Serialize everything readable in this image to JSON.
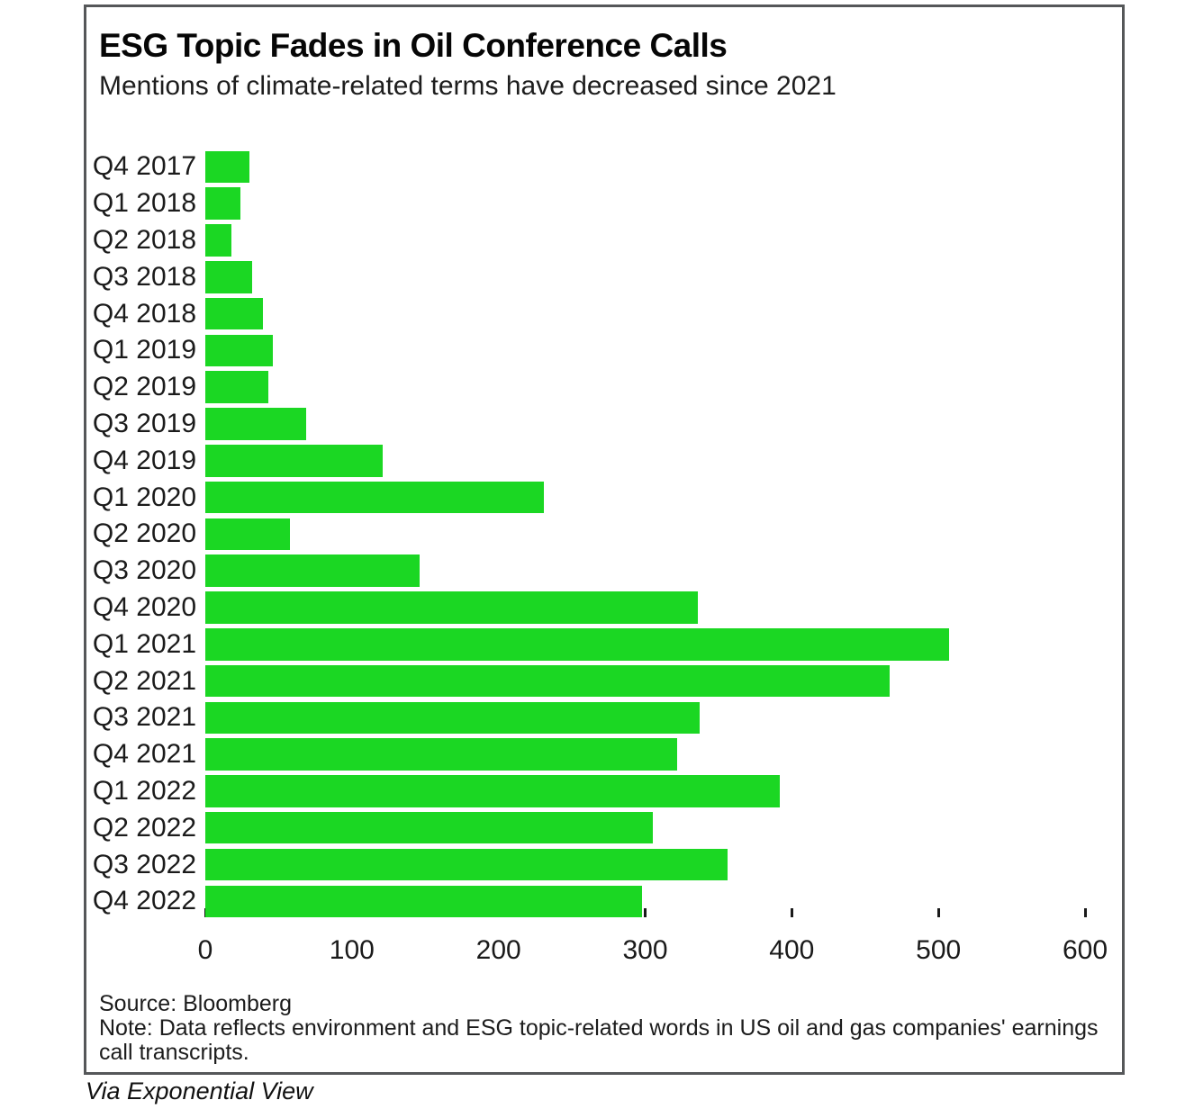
{
  "header": {
    "title": "ESG Topic Fades in Oil Conference Calls",
    "subtitle": "Mentions of climate-related terms have decreased since 2021"
  },
  "chart_data": {
    "type": "bar",
    "orientation": "horizontal",
    "title": "ESG Topic Fades in Oil Conference Calls",
    "subtitle": "Mentions of climate-related terms have decreased since 2021",
    "categories": [
      "Q4 2017",
      "Q1 2018",
      "Q2 2018",
      "Q3 2018",
      "Q4 2018",
      "Q1 2019",
      "Q2 2019",
      "Q3 2019",
      "Q4 2019",
      "Q1 2020",
      "Q2 2020",
      "Q3 2020",
      "Q4 2020",
      "Q1 2021",
      "Q2 2021",
      "Q3 2021",
      "Q4 2021",
      "Q1 2022",
      "Q2 2022",
      "Q3 2022",
      "Q4 2022"
    ],
    "values": [
      30,
      24,
      18,
      32,
      39,
      46,
      43,
      69,
      121,
      231,
      58,
      146,
      336,
      507,
      467,
      337,
      322,
      392,
      305,
      356,
      298
    ],
    "xlabel": "",
    "ylabel": "",
    "xlim": [
      0,
      600
    ],
    "x_ticks": [
      0,
      100,
      200,
      300,
      400,
      500,
      600
    ],
    "grid": false,
    "legend": false,
    "bar_color": "#1bd723"
  },
  "footer": {
    "source": "Source: Bloomberg",
    "note_lines": [
      "Note: Data reflects environment and ESG topic-related words in US oil and gas companies' earnings",
      "call transcripts."
    ],
    "via": "Via Exponential View"
  }
}
